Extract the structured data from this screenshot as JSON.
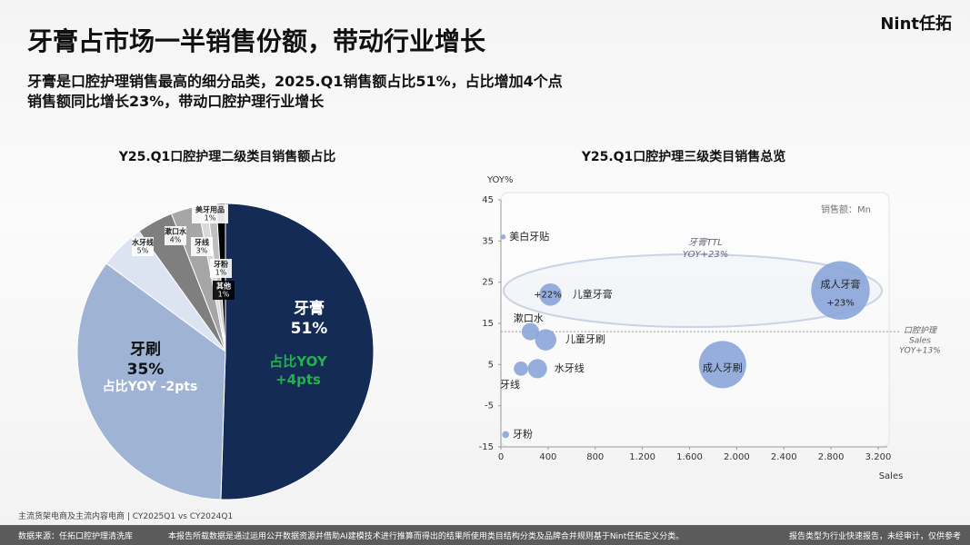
{
  "header": {
    "title": "牙膏占市场一半销售份额，带动行业增长",
    "subtitle": [
      "牙膏是口腔护理销售最高的细分品类，2025.Q1销售额占比51%，占比增加4个点",
      "销售额同比增长23%，带动口腔护理行业增长"
    ],
    "brand": "Nint任拓"
  },
  "chart_data": [
    {
      "type": "pie",
      "title": "Y25.Q1口腔护理二级类目销售额占比",
      "categories": [
        "牙膏",
        "牙刷",
        "水牙线",
        "漱口水",
        "牙线",
        "牙粉",
        "美牙用品",
        "其他"
      ],
      "values": [
        51,
        35,
        5,
        4,
        3,
        1,
        1,
        1
      ],
      "value_labels": [
        "51%",
        "35%",
        "5%",
        "4%",
        "3%",
        "1%",
        "1%",
        "1%"
      ],
      "colors": [
        "#132b55",
        "#9fb3d4",
        "#dde4f1",
        "#7f7f7f",
        "#a6a6a6",
        "#d9d9d9",
        "#bfbfbf",
        "#000000"
      ],
      "annotations": [
        "占比YOY +4pts",
        "占比YOY -2pts"
      ]
    },
    {
      "type": "scatter",
      "title": "Y25.Q1口腔护理三级类目销售总览",
      "x_label": "Sales",
      "y_label": "YOY%",
      "note": "销售额：Mn",
      "categories": [
        "美白牙贴",
        "儿童牙膏",
        "成人牙膏",
        "漱口水",
        "儿童牙刷",
        "成人牙刷",
        "水牙线",
        "牙线",
        "牙粉"
      ],
      "x": [
        20,
        420,
        2880,
        250,
        380,
        1880,
        310,
        170,
        40
      ],
      "values": [
        36,
        22,
        23,
        13,
        11,
        5,
        4,
        4,
        -12
      ],
      "value_labels": [
        null,
        "+22%",
        "+23%",
        null,
        null,
        null,
        null,
        null,
        null
      ],
      "color": "#8aa5d8",
      "xlim": [
        0,
        3200
      ],
      "xticks": [
        0,
        400,
        800,
        {
          "value": 1200,
          "label": "1.200"
        },
        {
          "value": 1600,
          "label": "1.600"
        },
        {
          "value": 2000,
          "label": "2.000"
        },
        {
          "value": 2400,
          "label": "2.400"
        },
        {
          "value": 2800,
          "label": "2.800"
        },
        {
          "value": 3200,
          "label": "3.200"
        }
      ],
      "ylim": [
        -15,
        45
      ],
      "yticks": [
        -15,
        -5,
        5,
        15,
        25,
        35,
        45
      ],
      "group_label": [
        "牙膏TTL",
        "YOY+23%"
      ],
      "reference_line": {
        "value": 13,
        "label": [
          "口腔护理",
          "Sales",
          "YOY+13%"
        ]
      }
    }
  ],
  "footer": {
    "scope": "主流货架电商及主流内容电商 | CY2025Q1 vs CY2024Q1",
    "source": "数据来源：任拓口腔护理清洗库",
    "disclaimer": "本报告所载数据是通过运用公开数据资源并借助AI建模技术进行推算而得出的结果所使用类目结构分类及品牌合并规则基于Nint任拓定义分类。",
    "type": "报告类型为行业快速报告，未经审计，仅供参考"
  }
}
